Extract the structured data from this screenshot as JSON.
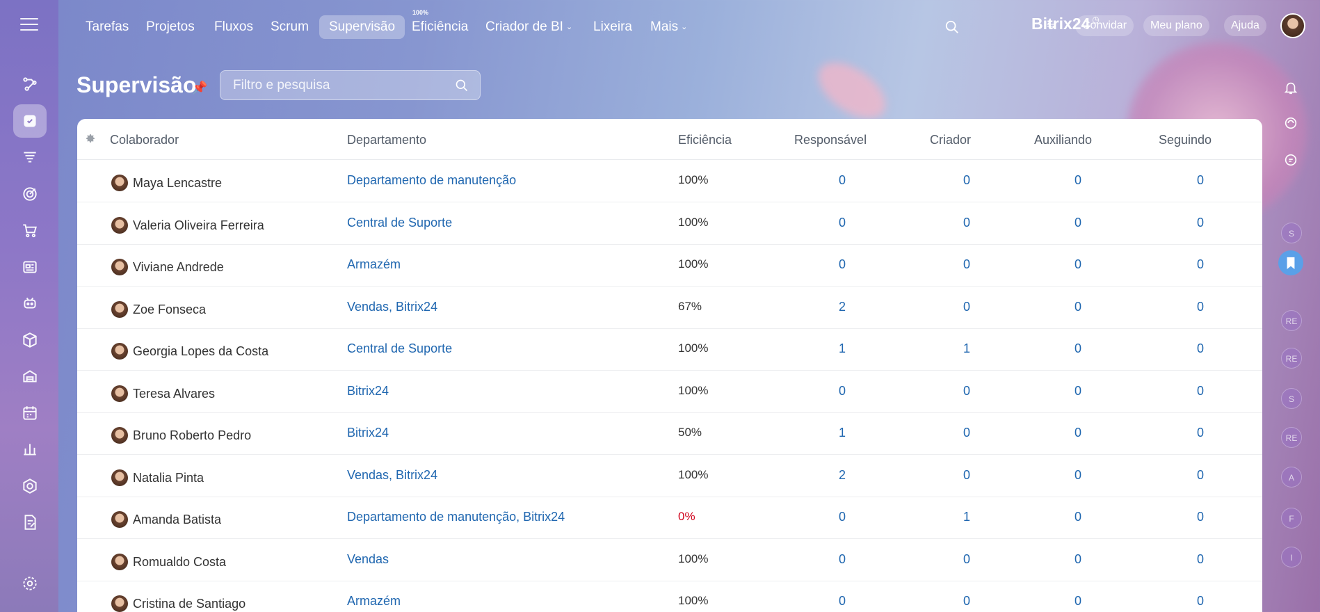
{
  "topnav": {
    "tabs": [
      "Tarefas",
      "Projetos",
      "Fluxos",
      "Scrum",
      "Supervisão",
      "Eficiência",
      "Criador de BI",
      "Lixeira",
      "Mais"
    ],
    "efficiency_badge": "100%",
    "brand": "Bitrix24",
    "invite": "Convidar",
    "plan": "Meu plano",
    "help": "Ajuda"
  },
  "page": {
    "title": "Supervisão",
    "search_placeholder": "Filtro e pesquisa"
  },
  "table": {
    "headers": [
      "Colaborador",
      "Departamento",
      "Eficiência",
      "Responsável",
      "Criador",
      "Auxiliando",
      "Seguindo"
    ],
    "rows": [
      {
        "name": "Maya Lencastre",
        "dept": "Departamento de manutenção",
        "eff": "100%",
        "resp": "0",
        "creator": "0",
        "aux": "0",
        "follow": "0"
      },
      {
        "name": "Valeria Oliveira Ferreira",
        "dept": "Central de Suporte",
        "eff": "100%",
        "resp": "0",
        "creator": "0",
        "aux": "0",
        "follow": "0"
      },
      {
        "name": "Viviane Andrede",
        "dept": "Armazém",
        "eff": "100%",
        "resp": "0",
        "creator": "0",
        "aux": "0",
        "follow": "0"
      },
      {
        "name": "Zoe Fonseca",
        "dept": "Vendas, Bitrix24",
        "eff": "67%",
        "resp": "2",
        "creator": "0",
        "aux": "0",
        "follow": "0"
      },
      {
        "name": "Georgia Lopes da Costa",
        "dept": "Central de Suporte",
        "eff": "100%",
        "resp": "1",
        "creator": "1",
        "aux": "0",
        "follow": "0"
      },
      {
        "name": "Teresa Alvares",
        "dept": "Bitrix24",
        "eff": "100%",
        "resp": "0",
        "creator": "0",
        "aux": "0",
        "follow": "0"
      },
      {
        "name": "Bruno Roberto Pedro",
        "dept": "Bitrix24",
        "eff": "50%",
        "resp": "1",
        "creator": "0",
        "aux": "0",
        "follow": "0"
      },
      {
        "name": "Natalia Pinta",
        "dept": "Vendas, Bitrix24",
        "eff": "100%",
        "resp": "2",
        "creator": "0",
        "aux": "0",
        "follow": "0"
      },
      {
        "name": "Amanda Batista",
        "dept": "Departamento de manutenção, Bitrix24",
        "eff": "0%",
        "resp": "0",
        "creator": "1",
        "aux": "0",
        "follow": "0"
      },
      {
        "name": "Romualdo Costa",
        "dept": "Vendas",
        "eff": "100%",
        "resp": "0",
        "creator": "0",
        "aux": "0",
        "follow": "0"
      },
      {
        "name": "Cristina de Santiago",
        "dept": "Armazém",
        "eff": "100%",
        "resp": "0",
        "creator": "0",
        "aux": "0",
        "follow": "0"
      }
    ]
  },
  "rightbar": {
    "avatars": [
      "S",
      "RE",
      "RE",
      "S",
      "RE",
      "A",
      "F",
      "I"
    ]
  },
  "colors": {
    "link": "#2067b0",
    "alert": "#d0021b",
    "text": "#333333"
  }
}
